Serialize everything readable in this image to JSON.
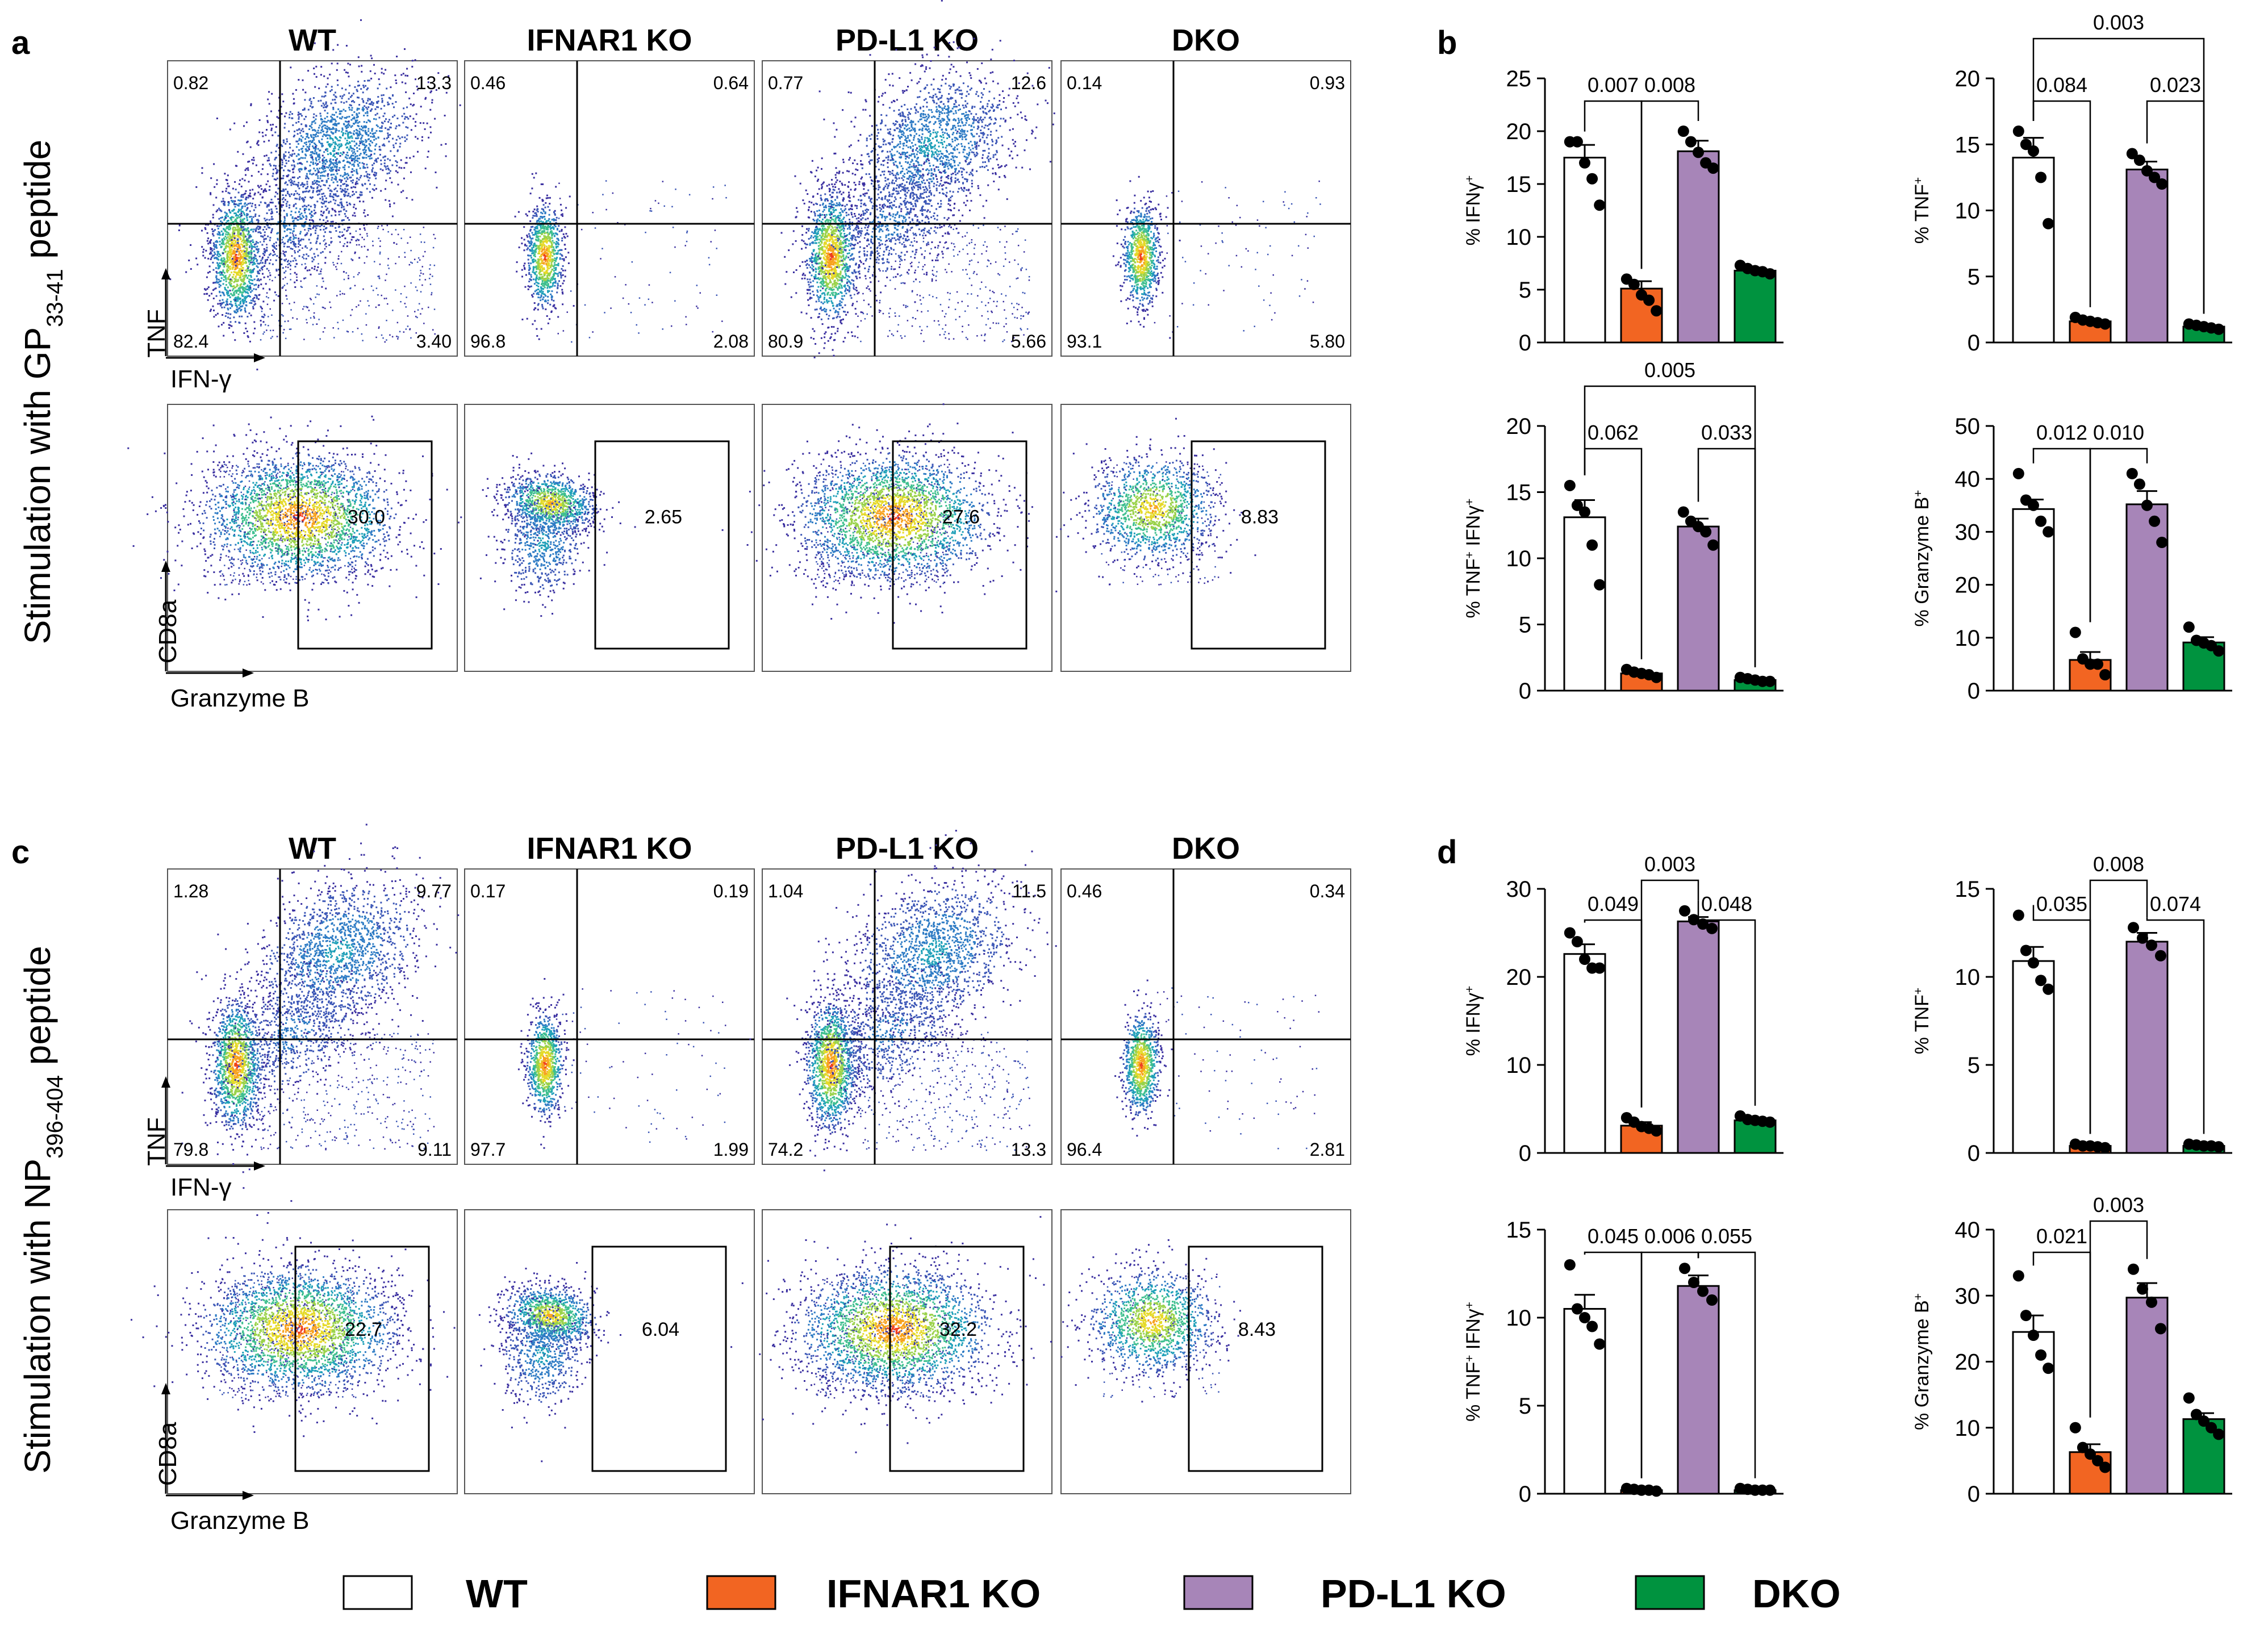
{
  "panels": {
    "a": {
      "letter": "a",
      "side_label": "Stimulation with GP",
      "side_sub": "33-41",
      "side_tail": " peptide",
      "groups": [
        "WT",
        "IFNAR1 KO",
        "PD-L1 KO",
        "DKO"
      ],
      "top_axis_y": "TNF",
      "top_axis_x": "IFN-γ",
      "bottom_axis_y": "CD8a",
      "bottom_axis_x": "Granzyme B",
      "quadrants": [
        {
          "ul": "0.82",
          "ur": "13.3",
          "ll": "82.4",
          "lr": "3.40"
        },
        {
          "ul": "0.46",
          "ur": "0.64",
          "ll": "96.8",
          "lr": "2.08"
        },
        {
          "ul": "0.77",
          "ur": "12.6",
          "ll": "80.9",
          "lr": "5.66"
        },
        {
          "ul": "0.14",
          "ur": "0.93",
          "ll": "93.1",
          "lr": "5.80"
        }
      ],
      "gates": [
        "30.0",
        "2.65",
        "27.6",
        "8.83"
      ]
    },
    "c": {
      "letter": "c",
      "side_label": "Stimulation with NP",
      "side_sub": "396-404",
      "side_tail": " peptide",
      "groups": [
        "WT",
        "IFNAR1 KO",
        "PD-L1 KO",
        "DKO"
      ],
      "top_axis_y": "TNF",
      "top_axis_x": "IFN-γ",
      "bottom_axis_y": "CD8a",
      "bottom_axis_x": "Granzyme B",
      "quadrants": [
        {
          "ul": "1.28",
          "ur": "9.77",
          "ll": "79.8",
          "lr": "9.11"
        },
        {
          "ul": "0.17",
          "ur": "0.19",
          "ll": "97.7",
          "lr": "1.99"
        },
        {
          "ul": "1.04",
          "ur": "11.5",
          "ll": "74.2",
          "lr": "13.3"
        },
        {
          "ul": "0.46",
          "ur": "0.34",
          "ll": "96.4",
          "lr": "2.81"
        }
      ],
      "gates": [
        "22.7",
        "6.04",
        "32.2",
        "8.43"
      ]
    },
    "b_letter": "b",
    "d_letter": "d"
  },
  "legend": [
    {
      "label": "WT",
      "color": "#ffffff"
    },
    {
      "label": "IFNAR1 KO",
      "color": "#f26522"
    },
    {
      "label": "PD-L1 KO",
      "color": "#a785b8"
    },
    {
      "label": "DKO",
      "color": "#00933f"
    }
  ],
  "colors": {
    "WT": "#ffffff",
    "IFNAR1 KO": "#f26522",
    "PD-L1 KO": "#a785b8",
    "DKO": "#00933f"
  },
  "chart_data": [
    {
      "type": "bar",
      "panel": "b",
      "ylabel": "% IFNγ+",
      "ylim": [
        0,
        25
      ],
      "yticks": [
        0,
        5,
        10,
        15,
        20,
        25
      ],
      "categories": [
        "WT",
        "IFNAR1 KO",
        "PD-L1 KO",
        "DKO"
      ],
      "values": [
        17.5,
        5.1,
        18.1,
        6.8
      ],
      "errors": [
        1.2,
        0.7,
        1.0,
        0.3
      ],
      "points": [
        [
          19,
          19,
          17,
          15.5,
          13
        ],
        [
          6,
          5.5,
          4.5,
          4,
          3
        ],
        [
          20,
          19,
          18,
          17,
          16.5
        ],
        [
          7.3,
          7,
          6.8,
          6.7,
          6.5
        ]
      ],
      "comparisons": [
        {
          "a": 0,
          "b": 1,
          "p": "0.007",
          "level": 1
        },
        {
          "a": 1,
          "b": 2,
          "p": "0.008",
          "level": 1
        }
      ]
    },
    {
      "type": "bar",
      "panel": "b",
      "ylabel": "% TNF+",
      "ylim": [
        0,
        20
      ],
      "yticks": [
        0,
        5,
        10,
        15,
        20
      ],
      "categories": [
        "WT",
        "IFNAR1 KO",
        "PD-L1 KO",
        "DKO"
      ],
      "values": [
        14.0,
        1.6,
        13.1,
        1.2
      ],
      "errors": [
        1.5,
        0.2,
        0.6,
        0.1
      ],
      "points": [
        [
          16,
          15,
          14.5,
          12.5,
          9
        ],
        [
          1.9,
          1.7,
          1.6,
          1.5,
          1.4
        ],
        [
          14.3,
          13.8,
          13,
          12.5,
          12
        ],
        [
          1.4,
          1.3,
          1.2,
          1.1,
          1.0
        ]
      ],
      "comparisons": [
        {
          "a": 0,
          "b": 1,
          "p": "0.084",
          "level": 1
        },
        {
          "a": 2,
          "b": 3,
          "p": "0.023",
          "level": 1
        },
        {
          "a": 0,
          "b": 3,
          "p": "0.003",
          "level": 2
        }
      ]
    },
    {
      "type": "bar",
      "panel": "b",
      "ylabel": "% TNF+ IFNγ+",
      "ylim": [
        0,
        20
      ],
      "yticks": [
        0,
        5,
        10,
        15,
        20
      ],
      "categories": [
        "WT",
        "IFNAR1 KO",
        "PD-L1 KO",
        "DKO"
      ],
      "values": [
        13.1,
        1.3,
        12.4,
        0.8
      ],
      "errors": [
        1.3,
        0.2,
        0.6,
        0.1
      ],
      "points": [
        [
          15.5,
          14,
          13.5,
          11,
          8
        ],
        [
          1.6,
          1.4,
          1.3,
          1.2,
          1.0
        ],
        [
          13.5,
          12.8,
          12.4,
          12,
          11
        ],
        [
          1.0,
          0.9,
          0.8,
          0.7,
          0.7
        ]
      ],
      "comparisons": [
        {
          "a": 0,
          "b": 1,
          "p": "0.062",
          "level": 1
        },
        {
          "a": 2,
          "b": 3,
          "p": "0.033",
          "level": 1
        },
        {
          "a": 0,
          "b": 3,
          "p": "0.005",
          "level": 2
        }
      ]
    },
    {
      "type": "bar",
      "panel": "b",
      "ylabel": "% Granzyme B+",
      "ylim": [
        0,
        50
      ],
      "yticks": [
        0,
        10,
        20,
        30,
        40,
        50
      ],
      "categories": [
        "WT",
        "IFNAR1 KO",
        "PD-L1 KO",
        "DKO"
      ],
      "values": [
        34.3,
        5.8,
        35.2,
        9.1
      ],
      "errors": [
        1.8,
        1.5,
        2.5,
        1.0
      ],
      "points": [
        [
          41,
          36,
          35,
          32,
          30
        ],
        [
          11,
          6,
          5,
          5,
          3
        ],
        [
          41,
          39,
          35,
          32,
          28
        ],
        [
          12,
          9.5,
          9,
          8.5,
          7.5
        ]
      ],
      "comparisons": [
        {
          "a": 0,
          "b": 1,
          "p": "0.012",
          "level": 1
        },
        {
          "a": 1,
          "b": 2,
          "p": "0.010",
          "level": 1
        }
      ]
    },
    {
      "type": "bar",
      "panel": "d",
      "ylabel": "% IFNγ+",
      "ylim": [
        0,
        30
      ],
      "yticks": [
        0,
        10,
        20,
        30
      ],
      "categories": [
        "WT",
        "IFNAR1 KO",
        "PD-L1 KO",
        "DKO"
      ],
      "values": [
        22.6,
        3.1,
        26.3,
        3.7
      ],
      "errors": [
        1.1,
        0.4,
        0.5,
        0.3
      ],
      "points": [
        [
          25,
          24,
          22,
          21,
          21
        ],
        [
          4,
          3.5,
          3,
          2.8,
          2.5
        ],
        [
          27.5,
          26.5,
          26,
          25.5
        ],
        [
          4.2,
          3.8,
          3.7,
          3.6,
          3.5
        ]
      ],
      "comparisons": [
        {
          "a": 0,
          "b": 1,
          "p": "0.049",
          "level": 1
        },
        {
          "a": 2,
          "b": 3,
          "p": "0.048",
          "level": 1
        },
        {
          "a": 1,
          "b": 2,
          "p": "0.003",
          "level": 2
        }
      ]
    },
    {
      "type": "bar",
      "panel": "d",
      "ylabel": "% TNF+",
      "ylim": [
        0,
        15
      ],
      "yticks": [
        0,
        5,
        10,
        15
      ],
      "categories": [
        "WT",
        "IFNAR1 KO",
        "PD-L1 KO",
        "DKO"
      ],
      "values": [
        10.9,
        0.4,
        12.0,
        0.4
      ],
      "errors": [
        0.8,
        0.05,
        0.5,
        0.05
      ],
      "points": [
        [
          13.5,
          11.5,
          10.8,
          9.8,
          9.3
        ],
        [
          0.5,
          0.4,
          0.4,
          0.35,
          0.3
        ],
        [
          12.8,
          12.2,
          11.8,
          11.2
        ],
        [
          0.5,
          0.45,
          0.4,
          0.4,
          0.35
        ]
      ],
      "comparisons": [
        {
          "a": 0,
          "b": 1,
          "p": "0.035",
          "level": 1
        },
        {
          "a": 2,
          "b": 3,
          "p": "0.074",
          "level": 1
        },
        {
          "a": 1,
          "b": 2,
          "p": "0.008",
          "level": 2
        }
      ]
    },
    {
      "type": "bar",
      "panel": "d",
      "ylabel": "% TNF+ IFNγ+",
      "ylim": [
        0,
        15
      ],
      "yticks": [
        0,
        5,
        10,
        15
      ],
      "categories": [
        "WT",
        "IFNAR1 KO",
        "PD-L1 KO",
        "DKO"
      ],
      "values": [
        10.5,
        0.2,
        11.8,
        0.2
      ],
      "errors": [
        0.8,
        0.05,
        0.6,
        0.05
      ],
      "points": [
        [
          13,
          10.5,
          10,
          9.5,
          8.5
        ],
        [
          0.3,
          0.25,
          0.2,
          0.2,
          0.15
        ],
        [
          12.8,
          12,
          11.5,
          11
        ],
        [
          0.3,
          0.25,
          0.2,
          0.2,
          0.2
        ]
      ],
      "comparisons": [
        {
          "a": 0,
          "b": 1,
          "p": "0.045",
          "level": 1
        },
        {
          "a": 1,
          "b": 2,
          "p": "0.006",
          "level": 1
        },
        {
          "a": 2,
          "b": 3,
          "p": "0.055",
          "level": 1
        }
      ]
    },
    {
      "type": "bar",
      "panel": "d",
      "ylabel": "% Granzyme B+",
      "ylim": [
        0,
        40
      ],
      "yticks": [
        0,
        10,
        20,
        30,
        40
      ],
      "categories": [
        "WT",
        "IFNAR1 KO",
        "PD-L1 KO",
        "DKO"
      ],
      "values": [
        24.5,
        6.3,
        29.7,
        11.3
      ],
      "errors": [
        2.5,
        1.2,
        2.2,
        0.9
      ],
      "points": [
        [
          33,
          27,
          24,
          21,
          19
        ],
        [
          10,
          7,
          6,
          5,
          4
        ],
        [
          34,
          31,
          29,
          25
        ],
        [
          14.5,
          12,
          11,
          10,
          9
        ]
      ],
      "comparisons": [
        {
          "a": 0,
          "b": 1,
          "p": "0.021",
          "level": 1
        },
        {
          "a": 1,
          "b": 2,
          "p": "0.003",
          "level": 2
        }
      ]
    }
  ]
}
